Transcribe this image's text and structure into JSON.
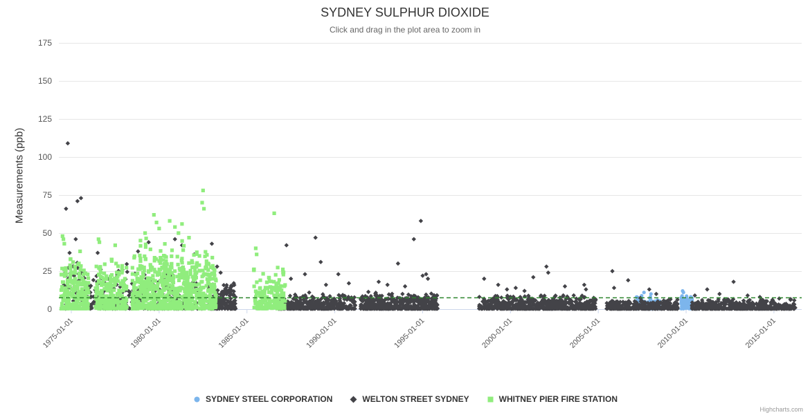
{
  "chart_data": {
    "type": "scatter",
    "title": "SYDNEY SULPHUR DIOXIDE",
    "subtitle": "Click and drag in the plot area to zoom in",
    "ylabel": "Measurements (ppb)",
    "xlabel": "",
    "ylim": [
      0,
      175
    ],
    "xlim": [
      1974.29,
      2016.58
    ],
    "grid": true,
    "legend_position": "bottom-center",
    "credits": "Highcharts.com",
    "y_ticks": [
      0,
      25,
      50,
      75,
      100,
      125,
      150,
      175
    ],
    "x_ticks": [
      {
        "value": 1975,
        "label": "1975-01-01"
      },
      {
        "value": 1980,
        "label": "1980-01-01"
      },
      {
        "value": 1985,
        "label": "1985-01-01"
      },
      {
        "value": 1990,
        "label": "1990-01-01"
      },
      {
        "value": 1995,
        "label": "1995-01-01"
      },
      {
        "value": 2000,
        "label": "2000-01-01"
      },
      {
        "value": 2005,
        "label": "2005-01-01"
      },
      {
        "value": 2010,
        "label": "2010-01-01"
      },
      {
        "value": 2015,
        "label": "2015-01-01"
      }
    ],
    "threshold_line": {
      "y": 7.5,
      "color": "#2d862d",
      "style": "dashed"
    },
    "series": [
      {
        "name": "SYDNEY STEEL CORPORATION",
        "marker": "circle",
        "color": "#7cb5ec",
        "clusters": [
          {
            "x0": 2007.2,
            "x1": 2008.6,
            "n": 160,
            "ymax": 9,
            "skew": 1.1
          },
          {
            "x0": 2009.75,
            "x1": 2010.45,
            "n": 110,
            "ymax": 11,
            "skew": 1.1
          }
        ],
        "outliers": [
          [
            2007.6,
            11
          ],
          [
            2008.0,
            10
          ],
          [
            2009.8,
            12
          ],
          [
            2009.85,
            11
          ]
        ]
      },
      {
        "name": "WELTON STREET SYDNEY",
        "marker": "diamond",
        "color": "#434348",
        "clusters": [
          {
            "x0": 1974.6,
            "x1": 1976.6,
            "n": 90,
            "ymax": 33,
            "skew": 1.2
          },
          {
            "x0": 1976.6,
            "x1": 1983.0,
            "n": 260,
            "ymax": 30,
            "skew": 1.8
          },
          {
            "x0": 1983.0,
            "x1": 1984.4,
            "n": 150,
            "ymax": 22,
            "skew": 1.8
          },
          {
            "x0": 1986.8,
            "x1": 1991.2,
            "n": 420,
            "ymax": 12,
            "skew": 2.2
          },
          {
            "x0": 1991.5,
            "x1": 1995.9,
            "n": 520,
            "ymax": 13,
            "skew": 2.2
          },
          {
            "x0": 1998.25,
            "x1": 2004.9,
            "n": 620,
            "ymax": 10,
            "skew": 2.3
          },
          {
            "x0": 2005.5,
            "x1": 2009.6,
            "n": 380,
            "ymax": 8,
            "skew": 2.3
          },
          {
            "x0": 2010.35,
            "x1": 2016.3,
            "n": 560,
            "ymax": 7,
            "skew": 2.4
          }
        ],
        "outliers": [
          [
            1974.8,
            109
          ],
          [
            1974.7,
            66
          ],
          [
            1975.35,
            71
          ],
          [
            1975.55,
            73
          ],
          [
            1975.25,
            46
          ],
          [
            1974.9,
            37
          ],
          [
            1976.5,
            37
          ],
          [
            1979.4,
            44
          ],
          [
            1980.9,
            46
          ],
          [
            1981.3,
            42
          ],
          [
            1982.0,
            36
          ],
          [
            1978.8,
            38
          ],
          [
            1983.0,
            43
          ],
          [
            1983.3,
            28
          ],
          [
            1983.5,
            24
          ],
          [
            1987.25,
            42
          ],
          [
            1988.9,
            47
          ],
          [
            1989.2,
            31
          ],
          [
            1988.3,
            23
          ],
          [
            1987.5,
            20
          ],
          [
            1990.2,
            23
          ],
          [
            1990.8,
            17
          ],
          [
            1989.5,
            16
          ],
          [
            1994.9,
            58
          ],
          [
            1994.5,
            46
          ],
          [
            1993.6,
            30
          ],
          [
            1995.2,
            23
          ],
          [
            1995.3,
            20
          ],
          [
            1992.5,
            18
          ],
          [
            1993.0,
            16
          ],
          [
            1994.0,
            15
          ],
          [
            1995.0,
            22
          ],
          [
            1998.5,
            20
          ],
          [
            1999.3,
            16
          ],
          [
            2000.3,
            14
          ],
          [
            2001.3,
            21
          ],
          [
            2002.05,
            28
          ],
          [
            2002.15,
            24
          ],
          [
            2003.1,
            15
          ],
          [
            2004.2,
            16
          ],
          [
            2004.3,
            13
          ],
          [
            1999.8,
            13
          ],
          [
            2000.8,
            12
          ],
          [
            2005.8,
            25
          ],
          [
            2006.7,
            19
          ],
          [
            2005.9,
            14
          ],
          [
            2007.9,
            13
          ],
          [
            2008.3,
            10
          ],
          [
            2011.2,
            13
          ],
          [
            2012.7,
            18
          ],
          [
            2011.9,
            10
          ],
          [
            2013.5,
            9
          ],
          [
            2010.5,
            9
          ],
          [
            2014.2,
            8
          ],
          [
            2015.3,
            7
          ]
        ]
      },
      {
        "name": "WHITNEY PIER FIRE STATION",
        "marker": "square",
        "color": "#90ed7d",
        "clusters": [
          {
            "x0": 1974.45,
            "x1": 1976.0,
            "n": 240,
            "ymax": 40,
            "skew": 1.6
          },
          {
            "x0": 1976.4,
            "x1": 1978.2,
            "n": 230,
            "ymax": 38,
            "skew": 1.6
          },
          {
            "x0": 1978.5,
            "x1": 1980.3,
            "n": 300,
            "ymax": 48,
            "skew": 1.5
          },
          {
            "x0": 1980.3,
            "x1": 1982.2,
            "n": 300,
            "ymax": 46,
            "skew": 1.5
          },
          {
            "x0": 1982.3,
            "x1": 1983.3,
            "n": 150,
            "ymax": 44,
            "skew": 1.5
          },
          {
            "x0": 1985.4,
            "x1": 1987.2,
            "n": 170,
            "ymax": 30,
            "skew": 1.5
          }
        ],
        "outliers": [
          [
            1974.5,
            48
          ],
          [
            1974.55,
            46
          ],
          [
            1974.6,
            43
          ],
          [
            1975.5,
            38
          ],
          [
            1976.55,
            46
          ],
          [
            1976.6,
            44
          ],
          [
            1977.5,
            42
          ],
          [
            1979.7,
            62
          ],
          [
            1979.85,
            57
          ],
          [
            1980.0,
            53
          ],
          [
            1979.2,
            50
          ],
          [
            1980.6,
            58
          ],
          [
            1980.9,
            54
          ],
          [
            1981.3,
            56
          ],
          [
            1981.1,
            50
          ],
          [
            1981.7,
            47
          ],
          [
            1982.5,
            78
          ],
          [
            1982.45,
            70
          ],
          [
            1982.55,
            66
          ],
          [
            1986.55,
            63
          ],
          [
            1985.5,
            40
          ],
          [
            1985.55,
            36
          ]
        ]
      }
    ]
  },
  "colors": {
    "background": "#ffffff",
    "grid": "#e6e6e6",
    "axis_line": "#ccd6eb",
    "tick_label": "#555555",
    "title": "#333333",
    "subtitle": "#666666",
    "legend_text": "#333333",
    "credit": "#999999"
  }
}
